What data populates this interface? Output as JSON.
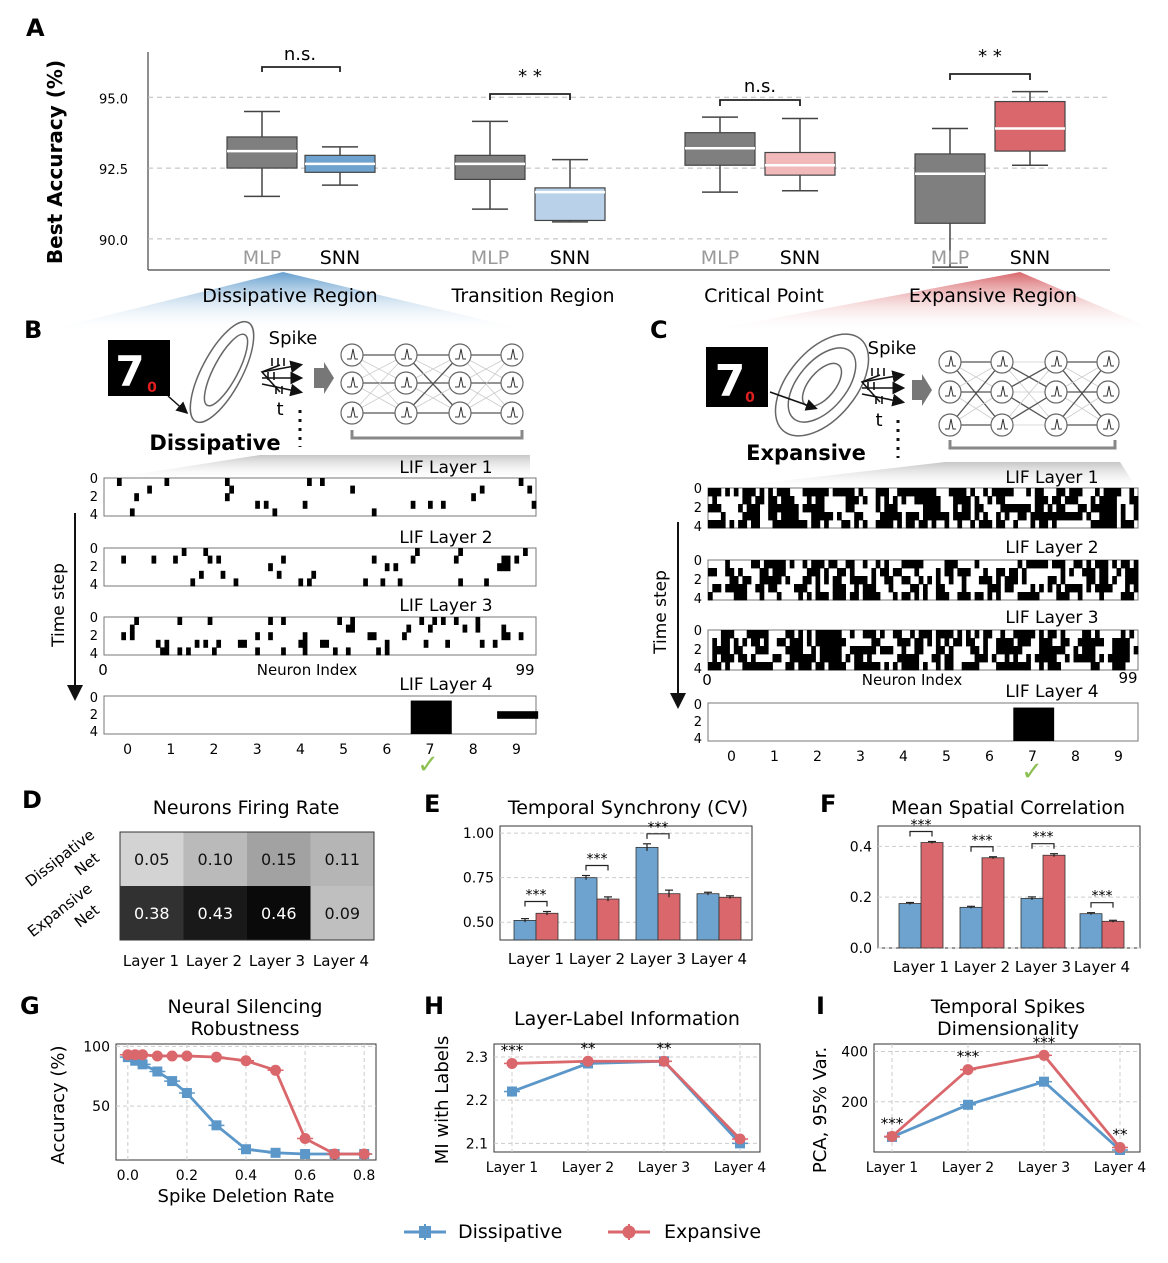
{
  "colors": {
    "mlp": "#7f7f7f",
    "blue": "#6fa3cf",
    "blue_light": "#b9d2ea",
    "red": "#d9676b",
    "red_light": "#f2b9bb",
    "green": "#8cc152",
    "grid": "#cccccc"
  },
  "panel_labels": {
    "a": "A",
    "b": "B",
    "c": "C",
    "d": "D",
    "e": "E",
    "f": "F",
    "g": "G",
    "h": "H",
    "i": "I"
  },
  "panelA": {
    "ylabel": "Best Accuracy (%)",
    "yticks": [
      "90.0",
      "92.5",
      "95.0"
    ],
    "ylim": [
      88.9,
      96.6
    ],
    "model_labels": [
      "MLP",
      "SNN"
    ],
    "groups": [
      {
        "name": "Dissipative Region",
        "sig": "n.s.",
        "mlp": {
          "whislo": 91.5,
          "q1": 92.5,
          "med": 93.1,
          "q3": 93.6,
          "whishi": 94.5
        },
        "snn": {
          "whislo": 91.9,
          "q1": 92.35,
          "med": 92.65,
          "q3": 92.95,
          "whishi": 93.25
        }
      },
      {
        "name": "Transition Region",
        "sig": "* *",
        "mlp": {
          "whislo": 91.05,
          "q1": 92.1,
          "med": 92.65,
          "q3": 92.95,
          "whishi": 94.15
        },
        "snn": {
          "whislo": 90.6,
          "q1": 90.65,
          "med": 91.65,
          "q3": 91.8,
          "whishi": 92.8
        }
      },
      {
        "name": "Critical Point",
        "sig": "n.s.",
        "mlp": {
          "whislo": 91.65,
          "q1": 92.6,
          "med": 93.2,
          "q3": 93.75,
          "whishi": 94.3
        },
        "snn": {
          "whislo": 91.7,
          "q1": 92.25,
          "med": 92.6,
          "q3": 93.05,
          "whishi": 94.25
        }
      },
      {
        "name": "Expansive Region",
        "sig": "* *",
        "mlp": {
          "whislo": 89.0,
          "q1": 90.55,
          "med": 92.3,
          "q3": 93.0,
          "whishi": 93.9
        },
        "snn": {
          "whislo": 92.6,
          "q1": 93.1,
          "med": 93.9,
          "q3": 94.85,
          "whishi": 95.2
        }
      }
    ]
  },
  "panelB": {
    "word": "Dissipative",
    "spike_label": "Spike",
    "t_label": "t",
    "layers": [
      "LIF Layer 1",
      "LIF Layer 2",
      "LIF Layer 3",
      "LIF Layer 4"
    ],
    "time_axis_label": "Time step",
    "neuron_axis_label": "Neuron Index",
    "neuron_range": [
      "0",
      "99"
    ],
    "time_ticks": [
      "0",
      "2",
      "4"
    ],
    "class_ticks": [
      "0",
      "1",
      "2",
      "3",
      "4",
      "5",
      "6",
      "7",
      "8",
      "9"
    ],
    "predicted": "7",
    "input_digit": "7",
    "input_label": "0"
  },
  "panelC": {
    "word": "Expansive",
    "spike_label": "Spike",
    "t_label": "t",
    "layers": [
      "LIF Layer 1",
      "LIF Layer 2",
      "LIF Layer 3",
      "LIF Layer 4"
    ],
    "time_axis_label": "Time step",
    "neuron_axis_label": "Neuron Index",
    "neuron_range": [
      "0",
      "99"
    ],
    "time_ticks": [
      "0",
      "2",
      "4"
    ],
    "class_ticks": [
      "0",
      "1",
      "2",
      "3",
      "4",
      "5",
      "6",
      "7",
      "8",
      "9"
    ],
    "predicted": "7",
    "input_digit": "7",
    "input_label": "0"
  },
  "check_mark": "✓",
  "panelD": {
    "title": "Neurons Firing Rate",
    "rows": [
      "Dissipative Net",
      "Expansive Net"
    ],
    "row_lines": [
      [
        "Dissipative",
        "Net"
      ],
      [
        "Expansive",
        "Net"
      ]
    ],
    "cols": [
      "Layer 1",
      "Layer 2",
      "Layer 3",
      "Layer 4"
    ],
    "values": [
      [
        0.05,
        0.1,
        0.15,
        0.11
      ],
      [
        0.38,
        0.43,
        0.46,
        0.09
      ]
    ],
    "labels": [
      [
        "0.05",
        "0.10",
        "0.15",
        "0.11"
      ],
      [
        "0.38",
        "0.43",
        "0.46",
        "0.09"
      ]
    ]
  },
  "panelE": {
    "title": "Temporal Synchrony (CV)",
    "categories": [
      "Layer 1",
      "Layer 2",
      "Layer 3",
      "Layer 4"
    ],
    "dissipative": [
      0.51,
      0.75,
      0.92,
      0.66
    ],
    "expansive": [
      0.55,
      0.63,
      0.66,
      0.64
    ],
    "errors": [
      0.01,
      0.012,
      0.02,
      0.008
    ],
    "ylim": [
      0.4,
      1.04
    ],
    "yticks": [
      "0.50",
      "0.75",
      "1.00"
    ],
    "sig": [
      "***",
      "***",
      "***",
      ""
    ]
  },
  "panelF": {
    "title": "Mean Spatial Correlation",
    "categories": [
      "Layer 1",
      "Layer 2",
      "Layer 3",
      "Layer 4"
    ],
    "dissipative": [
      0.175,
      0.16,
      0.195,
      0.135
    ],
    "expansive": [
      0.415,
      0.355,
      0.365,
      0.105
    ],
    "errors": [
      0.004,
      0.004,
      0.006,
      0.004
    ],
    "ylim": [
      0,
      0.48
    ],
    "yticks": [
      "0.0",
      "0.2",
      "0.4"
    ],
    "sig": [
      "***",
      "***",
      "***",
      "***"
    ]
  },
  "panelG": {
    "title_lines": [
      "Neural Silencing",
      "Robustness"
    ],
    "xlabel": "Spike Deletion Rate",
    "ylabel": "Accuracy (%)",
    "x": [
      0.0,
      0.025,
      0.05,
      0.1,
      0.15,
      0.2,
      0.3,
      0.4,
      0.5,
      0.6,
      0.7,
      0.8
    ],
    "dissipative": [
      91,
      88,
      85,
      79,
      71,
      61,
      34,
      14,
      11,
      10,
      10,
      10
    ],
    "expansive": [
      93,
      93,
      93,
      92,
      92,
      92,
      91,
      88,
      80,
      23,
      10,
      10
    ],
    "xlim": [
      -0.04,
      0.84
    ],
    "ylim": [
      5,
      102
    ],
    "xticks": [
      "0.0",
      "0.2",
      "0.4",
      "0.6",
      "0.8"
    ],
    "yticks": [
      "50",
      "100"
    ]
  },
  "panelH": {
    "title": "Layer-Label Information",
    "ylabel": "MI with Labels",
    "categories": [
      "Layer 1",
      "Layer 2",
      "Layer 3",
      "Layer 4"
    ],
    "dissipative": [
      2.22,
      2.285,
      2.29,
      2.1
    ],
    "expansive": [
      2.285,
      2.29,
      2.29,
      2.11
    ],
    "ylim": [
      2.08,
      2.33
    ],
    "yticks": [
      "2.1",
      "2.2",
      "2.3"
    ],
    "sig": [
      "***",
      "**",
      "**",
      ""
    ]
  },
  "panelI": {
    "title_lines": [
      "Temporal Spikes",
      "Dimensionality"
    ],
    "ylabel": "PCA, 95% Var.",
    "categories": [
      "Layer 1",
      "Layer 2",
      "Layer 3",
      "Layer 4"
    ],
    "dissipative": [
      60,
      188,
      280,
      8
    ],
    "expansive": [
      62,
      328,
      385,
      18
    ],
    "ylim": [
      0,
      430
    ],
    "yticks": [
      "200",
      "400"
    ],
    "sig": [
      "***",
      "***",
      "***",
      "**"
    ]
  },
  "legend": {
    "dissipative": "Dissipative",
    "expansive": "Expansive"
  }
}
